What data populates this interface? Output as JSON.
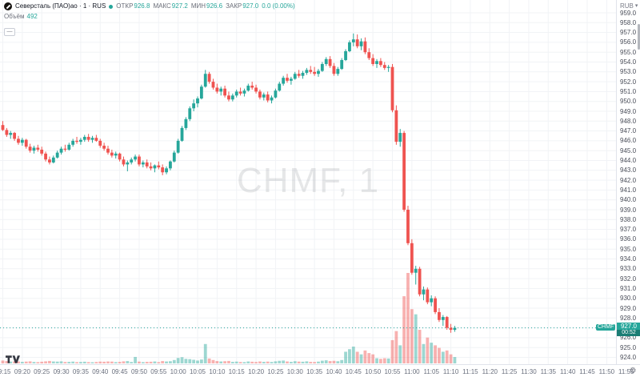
{
  "header": {
    "symbol_title": "Северсталь (ПАО)ао · 1 · RUS",
    "ohlc": {
      "open_label": "ОТКР",
      "open": "926.8",
      "high_label": "МАКС",
      "high": "927.2",
      "low_label": "МИН",
      "low": "926.6",
      "close_label": "ЗАКР",
      "close": "927.0",
      "change": "0.0 (0.00%)"
    },
    "volume_label": "Объём",
    "volume_value": "492",
    "collapse_glyph": "—"
  },
  "watermark": "CHMF, 1",
  "price_scale": {
    "currency": "RUB",
    "last_price_label": "927.0",
    "countdown": "00:52",
    "symbol_flag": "CHMF"
  },
  "colors": {
    "up": "#26a69a",
    "down": "#ef5350",
    "up_volume": "rgba(38,166,154,0.45)",
    "down_volume": "rgba(239,83,80,0.45)",
    "grid": "#f1f3f6",
    "price_line": "#26a69a"
  },
  "chart_data": {
    "type": "candlestick",
    "title": "CHMF, 1",
    "symbol": "CHMF",
    "interval_minutes": 1,
    "start_time": "09:15",
    "last_price": 927.0,
    "y_axis": {
      "min": 924.0,
      "max": 959.0,
      "tick": 1.0,
      "unit": "RUB"
    },
    "x_labels": [
      "09:15",
      "09:20",
      "09:25",
      "09:30",
      "09:35",
      "09:40",
      "09:45",
      "09:50",
      "09:55",
      "10:00",
      "10:05",
      "10:10",
      "10:15",
      "10:20",
      "10:25",
      "10:30",
      "10:35",
      "10:40",
      "10:45",
      "10:50",
      "10:55",
      "11:00",
      "11:05",
      "11:10",
      "11:15",
      "11:20",
      "11:25",
      "11:30",
      "11:35",
      "11:40",
      "11:45",
      "11:50",
      "11:55"
    ],
    "grid": true,
    "legend_position": "top-left",
    "volume_max": 7000,
    "candles_format": [
      "open",
      "high",
      "low",
      "close",
      "volume"
    ],
    "candles": [
      [
        947.6,
        948.0,
        947.0,
        947.1,
        220
      ],
      [
        947.1,
        947.3,
        946.4,
        946.6,
        180
      ],
      [
        946.6,
        947.0,
        946.2,
        946.8,
        140
      ],
      [
        946.8,
        946.9,
        946.0,
        946.2,
        160
      ],
      [
        946.2,
        946.5,
        945.6,
        945.8,
        150
      ],
      [
        945.8,
        946.3,
        945.5,
        946.1,
        120
      ],
      [
        946.1,
        946.2,
        945.2,
        945.4,
        140
      ],
      [
        945.4,
        945.7,
        944.8,
        945.0,
        160
      ],
      [
        945.0,
        945.5,
        944.7,
        945.3,
        110
      ],
      [
        945.3,
        945.6,
        944.9,
        945.1,
        100
      ],
      [
        945.1,
        945.4,
        944.5,
        944.7,
        130
      ],
      [
        944.7,
        944.9,
        943.9,
        944.1,
        160
      ],
      [
        944.1,
        944.4,
        943.6,
        943.8,
        190
      ],
      [
        943.8,
        944.5,
        943.7,
        944.3,
        150
      ],
      [
        944.3,
        945.0,
        944.2,
        944.8,
        140
      ],
      [
        944.8,
        945.4,
        944.6,
        945.2,
        160
      ],
      [
        945.2,
        945.6,
        944.9,
        945.1,
        110
      ],
      [
        945.1,
        945.8,
        945.0,
        945.6,
        120
      ],
      [
        945.6,
        946.2,
        945.4,
        946.0,
        140
      ],
      [
        946.0,
        946.4,
        945.7,
        945.9,
        100
      ],
      [
        945.9,
        946.3,
        945.6,
        946.1,
        110
      ],
      [
        946.1,
        946.6,
        945.9,
        946.4,
        130
      ],
      [
        946.4,
        946.7,
        945.9,
        946.1,
        100
      ],
      [
        946.1,
        946.5,
        945.8,
        946.3,
        90
      ],
      [
        946.3,
        946.6,
        945.9,
        946.0,
        110
      ],
      [
        946.0,
        946.2,
        945.3,
        945.5,
        140
      ],
      [
        945.5,
        945.8,
        945.0,
        945.2,
        130
      ],
      [
        945.2,
        945.5,
        944.6,
        944.8,
        150
      ],
      [
        944.8,
        945.1,
        944.3,
        944.5,
        140
      ],
      [
        944.5,
        944.9,
        944.2,
        944.7,
        100
      ],
      [
        944.7,
        944.8,
        943.9,
        944.1,
        120
      ],
      [
        944.1,
        944.4,
        943.4,
        943.6,
        160
      ],
      [
        943.6,
        944.0,
        942.9,
        943.8,
        180
      ],
      [
        943.8,
        944.3,
        943.6,
        944.1,
        110
      ],
      [
        944.1,
        944.6,
        943.9,
        944.4,
        500
      ],
      [
        944.4,
        944.6,
        943.4,
        943.6,
        140
      ],
      [
        943.6,
        944.0,
        943.3,
        943.8,
        100
      ],
      [
        943.8,
        944.1,
        943.2,
        943.4,
        120
      ],
      [
        943.4,
        943.8,
        943.0,
        943.2,
        130
      ],
      [
        943.2,
        943.6,
        942.8,
        943.5,
        150
      ],
      [
        943.5,
        943.9,
        943.1,
        943.3,
        100
      ],
      [
        943.3,
        943.6,
        942.5,
        942.8,
        180
      ],
      [
        942.8,
        943.4,
        942.6,
        943.2,
        150
      ],
      [
        943.2,
        944.0,
        943.0,
        943.9,
        170
      ],
      [
        943.9,
        945.0,
        943.8,
        944.8,
        260
      ],
      [
        944.8,
        946.2,
        944.7,
        946.0,
        420
      ],
      [
        946.0,
        947.5,
        945.9,
        947.3,
        480
      ],
      [
        947.3,
        948.4,
        947.1,
        948.2,
        350
      ],
      [
        948.2,
        949.5,
        948.0,
        949.3,
        330
      ],
      [
        949.3,
        950.2,
        949.0,
        949.8,
        280
      ],
      [
        949.8,
        950.5,
        949.4,
        950.3,
        220
      ],
      [
        950.3,
        951.7,
        950.2,
        951.5,
        300
      ],
      [
        951.5,
        953.2,
        951.4,
        952.8,
        1500
      ],
      [
        952.8,
        953.0,
        951.8,
        952.0,
        380
      ],
      [
        952.0,
        952.3,
        951.2,
        951.4,
        260
      ],
      [
        951.4,
        951.8,
        950.8,
        951.0,
        180
      ],
      [
        951.0,
        951.5,
        950.6,
        951.3,
        150
      ],
      [
        951.3,
        951.6,
        950.4,
        950.6,
        170
      ],
      [
        950.6,
        951.0,
        950.0,
        950.2,
        190
      ],
      [
        950.2,
        950.8,
        950.0,
        950.6,
        120
      ],
      [
        950.6,
        951.2,
        950.4,
        951.0,
        140
      ],
      [
        951.0,
        951.4,
        950.6,
        950.8,
        110
      ],
      [
        950.8,
        951.3,
        950.5,
        951.1,
        100
      ],
      [
        951.1,
        951.8,
        951.0,
        951.6,
        150
      ],
      [
        951.6,
        952.0,
        951.2,
        951.4,
        130
      ],
      [
        951.4,
        951.7,
        950.8,
        951.0,
        110
      ],
      [
        951.0,
        951.2,
        950.2,
        950.4,
        150
      ],
      [
        950.4,
        950.9,
        950.1,
        950.7,
        120
      ],
      [
        950.7,
        951.0,
        949.9,
        950.1,
        140
      ],
      [
        950.1,
        950.6,
        949.8,
        950.4,
        110
      ],
      [
        950.4,
        951.3,
        950.3,
        951.1,
        160
      ],
      [
        951.1,
        952.0,
        951.0,
        951.8,
        200
      ],
      [
        951.8,
        952.6,
        951.6,
        952.4,
        220
      ],
      [
        952.4,
        952.8,
        951.9,
        952.1,
        150
      ],
      [
        952.1,
        952.5,
        951.7,
        952.3,
        120
      ],
      [
        952.3,
        953.0,
        952.2,
        952.8,
        170
      ],
      [
        952.8,
        953.2,
        952.4,
        952.6,
        140
      ],
      [
        952.6,
        953.1,
        952.3,
        952.9,
        130
      ],
      [
        952.9,
        953.4,
        952.7,
        953.2,
        160
      ],
      [
        953.2,
        953.6,
        952.8,
        953.0,
        120
      ],
      [
        953.0,
        953.5,
        952.6,
        952.8,
        110
      ],
      [
        952.8,
        953.3,
        952.5,
        953.1,
        140
      ],
      [
        953.1,
        954.0,
        953.0,
        953.8,
        210
      ],
      [
        953.8,
        954.5,
        953.6,
        954.3,
        240
      ],
      [
        954.3,
        954.6,
        953.4,
        953.6,
        180
      ],
      [
        953.6,
        953.9,
        952.6,
        952.8,
        200
      ],
      [
        952.8,
        953.5,
        952.6,
        953.3,
        170
      ],
      [
        953.3,
        954.4,
        953.2,
        954.2,
        260
      ],
      [
        954.2,
        955.3,
        954.1,
        955.1,
        900
      ],
      [
        955.1,
        956.2,
        955.0,
        956.0,
        1100
      ],
      [
        956.0,
        956.9,
        955.6,
        956.3,
        1300
      ],
      [
        956.3,
        956.8,
        955.4,
        955.6,
        900
      ],
      [
        955.6,
        956.4,
        955.2,
        956.1,
        700
      ],
      [
        956.1,
        956.5,
        954.8,
        955.0,
        1000
      ],
      [
        955.0,
        955.4,
        954.2,
        954.4,
        800
      ],
      [
        954.4,
        954.8,
        953.6,
        953.8,
        700
      ],
      [
        953.8,
        954.3,
        953.4,
        954.1,
        400
      ],
      [
        954.1,
        954.4,
        953.5,
        953.7,
        350
      ],
      [
        953.7,
        954.0,
        953.2,
        953.4,
        400
      ],
      [
        953.4,
        953.7,
        953.0,
        953.5,
        380
      ],
      [
        953.5,
        953.8,
        948.9,
        949.1,
        1800
      ],
      [
        949.1,
        949.6,
        945.6,
        945.9,
        2500
      ],
      [
        945.9,
        947.2,
        945.4,
        946.8,
        1400
      ],
      [
        946.8,
        947.0,
        938.8,
        939.0,
        5200
      ],
      [
        939.0,
        939.4,
        935.4,
        935.6,
        7000
      ],
      [
        935.6,
        936.0,
        932.4,
        932.6,
        4200
      ],
      [
        932.6,
        933.3,
        931.4,
        933.0,
        3800
      ],
      [
        933.0,
        933.2,
        930.2,
        930.4,
        2600
      ],
      [
        930.4,
        931.2,
        929.8,
        930.9,
        1500
      ],
      [
        930.9,
        931.1,
        929.4,
        929.6,
        2000
      ],
      [
        929.6,
        930.3,
        929.2,
        930.0,
        1600
      ],
      [
        930.0,
        930.2,
        928.4,
        928.6,
        1400
      ],
      [
        928.6,
        929.0,
        927.6,
        927.8,
        1200
      ],
      [
        927.8,
        928.3,
        927.2,
        928.1,
        900
      ],
      [
        928.1,
        928.2,
        926.8,
        927.0,
        1000
      ],
      [
        927.0,
        927.4,
        926.5,
        926.8,
        700
      ],
      [
        926.8,
        927.2,
        926.6,
        927.0,
        492
      ]
    ]
  },
  "branding": {
    "logo": "TradingView"
  }
}
